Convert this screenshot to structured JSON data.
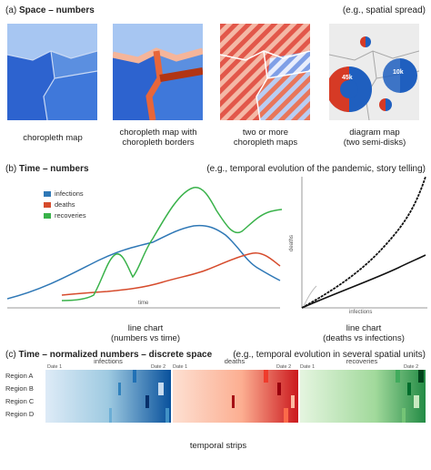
{
  "section_a": {
    "label_prefix": "(a)",
    "label_title": "Space – numbers",
    "note": "(e.g., spatial spread)",
    "maps": [
      {
        "line1": "choropleth map",
        "line2": ""
      },
      {
        "line1": "choropleth map with",
        "line2": "choropleth borders"
      },
      {
        "line1": "two or more",
        "line2": "choropleth maps"
      },
      {
        "line1": "diagram map",
        "line2": "(two semi-disks)"
      }
    ],
    "badges": [
      "45k",
      "10k"
    ]
  },
  "section_b": {
    "label_prefix": "(b)",
    "label_title": "Time – numbers",
    "note": "(e.g., temporal evolution of the pandemic, story telling)",
    "chart_left": {
      "type": "line",
      "xlabel": "time",
      "series": [
        {
          "name": "infections",
          "color": "#2f78b6"
        },
        {
          "name": "deaths",
          "color": "#d64b2c"
        },
        {
          "name": "recoveries",
          "color": "#39b24a"
        }
      ],
      "caption_line1": "line chart",
      "caption_line2": "(numbers vs time)"
    },
    "chart_right": {
      "type": "line",
      "xlabel": "infections",
      "ylabel": "deaths",
      "caption_line1": "line chart",
      "caption_line2": "(deaths vs infections)"
    }
  },
  "section_c": {
    "label_prefix": "(c)",
    "label_title": "Time – normalized numbers – discrete space",
    "note": "(e.g., temporal evolution in several spatial units)",
    "regions": [
      "Region A",
      "Region B",
      "Region C",
      "Region D"
    ],
    "strips": [
      {
        "title": "infections",
        "date_start": "Date 1",
        "date_end": "Date 2",
        "color": "#1a5fb4"
      },
      {
        "title": "deaths",
        "date_start": "Date 1",
        "date_end": "Date 2",
        "color": "#c81d1d"
      },
      {
        "title": "recoveries",
        "date_start": "Date 1",
        "date_end": "Date 2",
        "color": "#1e9a3a"
      }
    ],
    "caption": "temporal strips"
  }
}
